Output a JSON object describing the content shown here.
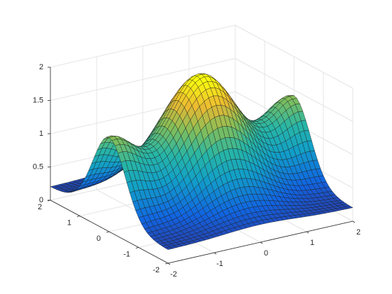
{
  "chart_data": {
    "type": "surface",
    "xlim": [
      -2,
      2
    ],
    "ylim": [
      -2,
      2
    ],
    "zlim": [
      0,
      2
    ],
    "xticks": [
      -2,
      -1,
      0,
      1,
      2
    ],
    "yticks": [
      -2,
      -1,
      0,
      1,
      2
    ],
    "zticks": [
      0,
      0.5,
      1,
      1.5,
      2
    ],
    "grid": true,
    "colormap": "parula"
  }
}
